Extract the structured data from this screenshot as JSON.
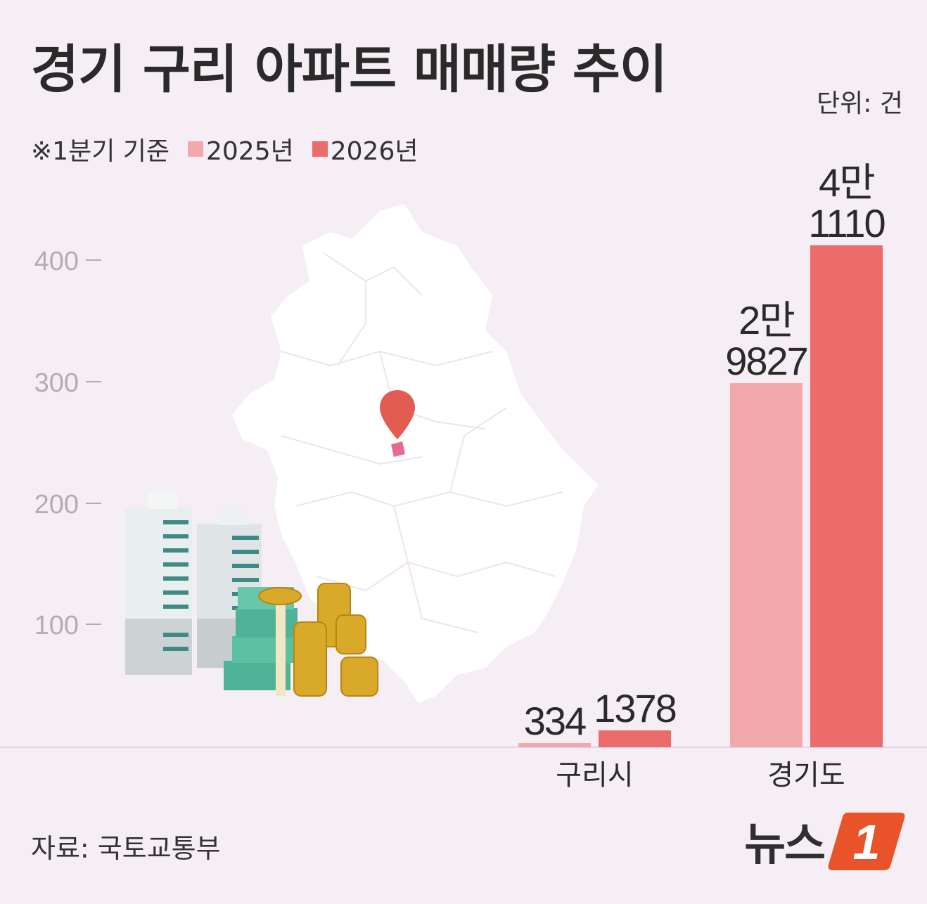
{
  "header": {
    "title": "경기 구리 아파트 매매량 추이",
    "unit": "단위: 건",
    "note": "※1분기 기준"
  },
  "footer": {
    "source": "자료: 국토교통부",
    "logo_text": "뉴스",
    "logo_mark": "1"
  },
  "colors": {
    "series_2025": "#f3a9ab",
    "series_2026": "#ec6b6b",
    "map_fill": "#ffffff",
    "map_pin": "#e25c52",
    "highlight_region": "#e86a8f",
    "logo_accent": "#e8532a"
  },
  "chart_data": {
    "type": "bar",
    "categories": [
      "구리시",
      "경기도"
    ],
    "series": [
      {
        "name": "2025년",
        "values": [
          334,
          29827
        ],
        "labels": [
          "334",
          "2만\n9827"
        ]
      },
      {
        "name": "2026년",
        "values": [
          1378,
          41110
        ],
        "labels": [
          "1378",
          "4만\n1110"
        ]
      }
    ],
    "y_ticks": [
      "100",
      "200",
      "300",
      "400"
    ],
    "legend": "top-left",
    "grid": false
  }
}
